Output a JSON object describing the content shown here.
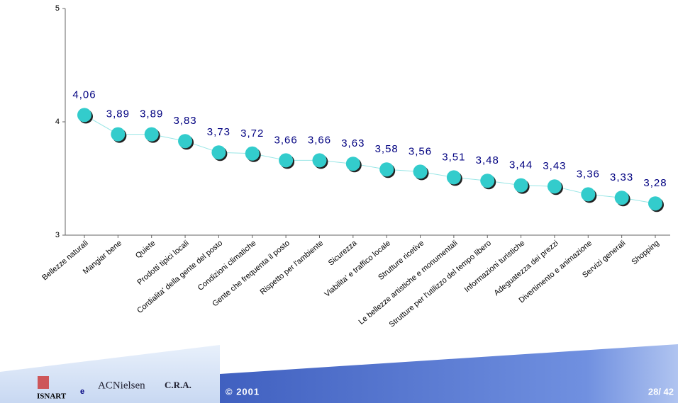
{
  "chart_data": {
    "type": "line",
    "categories": [
      "Bellezze naturali",
      "Mangiar bene",
      "Quiete",
      "Prodotti tipici locali",
      "Cordialita' della gente del posto",
      "Condizioni climatiche",
      "Gente che frequenta il posto",
      "Rispetto per l'ambiente",
      "Sicurezza",
      "Viabilita' e traffico locale",
      "Strutture  ricetive",
      "Le bellezze artistiche e monumentali",
      "Strutture per l'utilizzo del tempo libero",
      "Informazioni turistiche",
      "Adeguatezza dei prezzi",
      "Divertimento e animazione",
      "Servizi generali",
      "Shopping"
    ],
    "values": [
      4.06,
      3.89,
      3.89,
      3.83,
      3.73,
      3.72,
      3.66,
      3.66,
      3.63,
      3.58,
      3.56,
      3.51,
      3.48,
      3.44,
      3.43,
      3.36,
      3.33,
      3.28
    ],
    "value_labels": [
      "4,06",
      "3,89",
      "3,89",
      "3,83",
      "3,73",
      "3,72",
      "3,66",
      "3,66",
      "3,63",
      "3,58",
      "3,56",
      "3,51",
      "3,48",
      "3,44",
      "3,43",
      "3,36",
      "3,33",
      "3,28"
    ],
    "color": "#33cccc",
    "line_color": "#99e6e6",
    "ylim": [
      3,
      5
    ],
    "yticks": [
      3,
      4,
      5
    ]
  },
  "footer": {
    "logo_left": "ISNART",
    "joiner": "e",
    "logo_right": "ACNielsen",
    "logo_right_suffix": "C.R.A.",
    "copyright": "© 2001",
    "page": "28/ 42"
  }
}
